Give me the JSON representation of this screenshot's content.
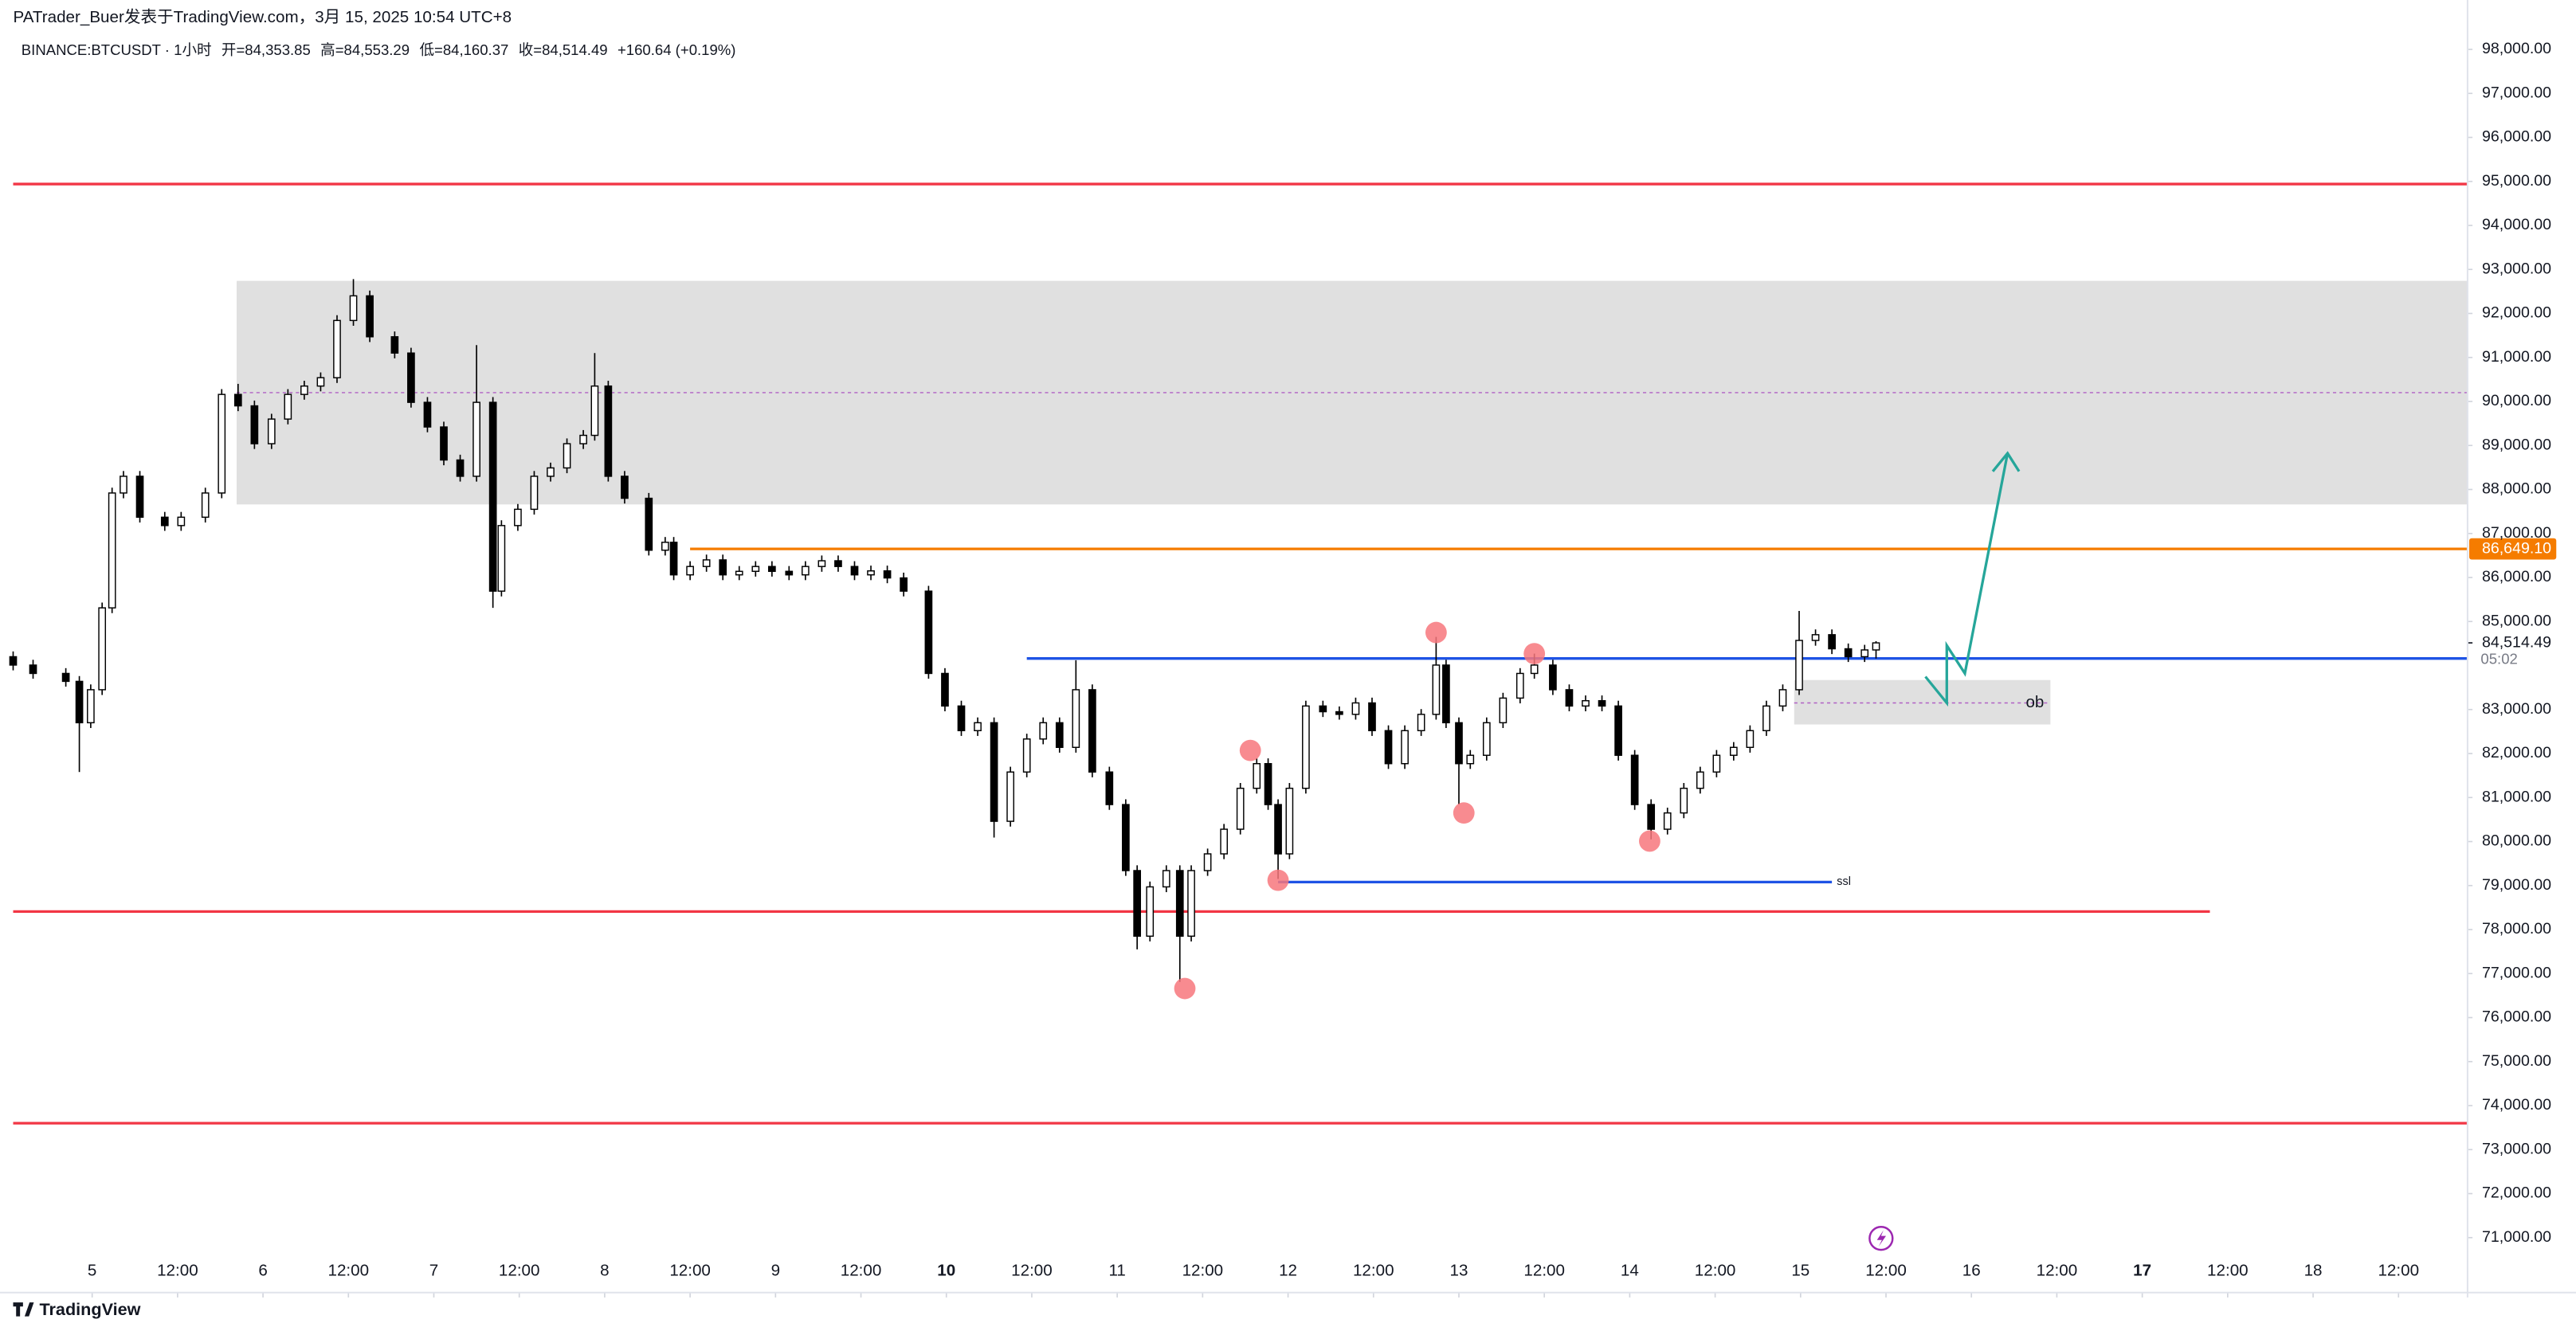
{
  "header": {
    "author": "PATrader_Buer发表于TradingView.com，3月 15, 2025 10:54 UTC+8",
    "brand": "TradingView"
  },
  "chart_data": {
    "type": "candlestick",
    "symbol": "BINANCE:BTCUSDT · 1小时",
    "quote": [
      "开=84,353.85",
      "高=84,553.29",
      "低=84,160.37",
      "收=84,514.49",
      "+160.64 (+0.19%)"
    ],
    "up_color": "#ffffff",
    "down_color": "#000000",
    "wick_color": "#000000",
    "x": [
      -11.1,
      -8.3,
      -3.7,
      -1.8,
      -0.2,
      1.4,
      2.8,
      4.4,
      6.7,
      10.2,
      12.5,
      15.9,
      18.2,
      20.5,
      22.8,
      25.2,
      27.5,
      29.8,
      32.1,
      34.4,
      36.7,
      39.0,
      42.5,
      44.8,
      47.1,
      49.4,
      51.7,
      54.0,
      56.3,
      57.5,
      59.8,
      62.1,
      64.4,
      66.7,
      69.0,
      70.6,
      72.5,
      74.8,
      78.2,
      80.5,
      81.7,
      84.0,
      86.3,
      88.6,
      90.9,
      93.2,
      95.5,
      97.9,
      100.2,
      102.5,
      104.8,
      107.1,
      109.4,
      111.7,
      114.0,
      117.5,
      119.8,
      122.1,
      124.4,
      126.7,
      129.0,
      131.3,
      133.6,
      135.9,
      138.2,
      140.5,
      142.9,
      145.2,
      146.8,
      148.6,
      150.9,
      152.8,
      154.4,
      156.7,
      159.0,
      161.3,
      163.6,
      165.2,
      166.6,
      168.2,
      170.5,
      172.9,
      175.2,
      177.5,
      179.8,
      182.1,
      184.4,
      186.7,
      188.8,
      190.2,
      192.0,
      193.6,
      195.9,
      198.2,
      200.6,
      202.6,
      205.2,
      207.5,
      209.8,
      212.1,
      214.4,
      216.7,
      219.0,
      221.3,
      223.6,
      225.9,
      228.2,
      230.6,
      232.9,
      235.2,
      237.5,
      239.8,
      242.1,
      244.4,
      246.7,
      249.0,
      250.6
    ],
    "open": [
      84200,
      84010,
      83820,
      83640,
      82700,
      83450,
      85310,
      87920,
      88300,
      87370,
      87180,
      87370,
      87920,
      90160,
      89900,
      89040,
      89600,
      90160,
      90350,
      90540,
      91840,
      92400,
      91470,
      91100,
      89980,
      89420,
      88670,
      88300,
      89980,
      85690,
      87180,
      87550,
      88300,
      88490,
      89040,
      89230,
      90350,
      88300,
      87800,
      86620,
      86800,
      86060,
      86250,
      86400,
      86060,
      86140,
      86250,
      86140,
      86060,
      86250,
      86380,
      86250,
      86060,
      86150,
      85990,
      85690,
      83820,
      83080,
      82520,
      82700,
      80460,
      81580,
      82330,
      82700,
      82140,
      83450,
      81580,
      80840,
      79340,
      77850,
      78970,
      79340,
      77850,
      79340,
      79720,
      80280,
      81210,
      81770,
      80840,
      79720,
      81210,
      83080,
      82950,
      82890,
      83150,
      82520,
      81770,
      82520,
      82890,
      84010,
      82700,
      81770,
      81960,
      82700,
      83260,
      83820,
      84010,
      83450,
      83080,
      83200,
      83080,
      81960,
      80840,
      80280,
      80650,
      81210,
      81580,
      81960,
      82140,
      82520,
      83080,
      83450,
      84570,
      84700,
      84380,
      84200,
      84353.85
    ],
    "high": [
      84320,
      84130,
      83940,
      83760,
      83570,
      85430,
      88040,
      88420,
      88420,
      87490,
      87490,
      88040,
      90280,
      90400,
      90020,
      89720,
      90280,
      90470,
      90660,
      91960,
      92780,
      92520,
      91590,
      91220,
      90100,
      89540,
      88790,
      91280,
      90100,
      87300,
      87670,
      88420,
      88610,
      89160,
      89350,
      91100,
      90470,
      88420,
      87920,
      86920,
      86920,
      86370,
      86520,
      86520,
      86260,
      86370,
      86370,
      86260,
      86370,
      86500,
      86500,
      86370,
      86270,
      86270,
      86110,
      85810,
      83940,
      83200,
      82820,
      82820,
      81700,
      82450,
      82820,
      82820,
      84120,
      83570,
      81700,
      80960,
      79460,
      79090,
      79460,
      79460,
      79460,
      79840,
      80400,
      81330,
      81890,
      81890,
      80960,
      81330,
      83200,
      83200,
      83070,
      83270,
      83270,
      82640,
      82640,
      83010,
      84650,
      84130,
      82820,
      82080,
      82820,
      83380,
      83940,
      84270,
      84130,
      83570,
      83320,
      83320,
      83200,
      82080,
      80960,
      80770,
      81330,
      81700,
      82080,
      82260,
      82640,
      83200,
      83570,
      85240,
      84820,
      84820,
      84500,
      84470,
      84553.29
    ],
    "low": [
      83890,
      83700,
      83520,
      81580,
      82580,
      83330,
      85190,
      87800,
      87250,
      87060,
      87060,
      87250,
      87800,
      89780,
      88920,
      88920,
      89480,
      90040,
      90230,
      90420,
      91720,
      91350,
      90980,
      89860,
      89300,
      88550,
      88180,
      88180,
      85310,
      85570,
      87060,
      87430,
      88180,
      88370,
      88920,
      89110,
      88180,
      87680,
      86500,
      86500,
      85940,
      85940,
      86130,
      85940,
      85940,
      86020,
      86020,
      85940,
      85940,
      86130,
      86130,
      85940,
      85940,
      85870,
      85570,
      83700,
      82960,
      82400,
      82400,
      80090,
      80340,
      81460,
      82210,
      82020,
      82020,
      81460,
      80720,
      79220,
      77550,
      77730,
      78850,
      76810,
      77730,
      79220,
      79600,
      80160,
      81090,
      80720,
      79150,
      79600,
      81090,
      82830,
      82770,
      82770,
      82400,
      81650,
      81650,
      82400,
      82770,
      82580,
      80840,
      81650,
      81840,
      82580,
      83140,
      83700,
      83330,
      82960,
      82960,
      82960,
      81840,
      80720,
      80050,
      80160,
      80530,
      81090,
      81460,
      81840,
      82020,
      82400,
      82960,
      83330,
      84450,
      84260,
      84080,
      84080,
      84160.37
    ],
    "close": [
      84010,
      83820,
      83640,
      82700,
      83450,
      85310,
      87920,
      88300,
      87370,
      87180,
      87370,
      87920,
      90160,
      89900,
      89040,
      89600,
      90160,
      90350,
      90540,
      91840,
      92400,
      91470,
      91100,
      89980,
      89420,
      88670,
      88300,
      89980,
      85690,
      87180,
      87550,
      88300,
      88490,
      89040,
      89230,
      90350,
      88300,
      87800,
      86620,
      86800,
      86060,
      86250,
      86400,
      86060,
      86140,
      86250,
      86140,
      86060,
      86250,
      86380,
      86250,
      86060,
      86150,
      85990,
      85690,
      83820,
      83080,
      82520,
      82700,
      80460,
      81580,
      82330,
      82700,
      82140,
      83450,
      81580,
      80840,
      79340,
      77850,
      78970,
      79340,
      77850,
      79340,
      79720,
      80280,
      81210,
      81770,
      80840,
      79720,
      81210,
      83080,
      82950,
      82890,
      83150,
      82520,
      81770,
      82520,
      82890,
      84010,
      82700,
      81770,
      81960,
      82700,
      83260,
      83820,
      84010,
      83450,
      83080,
      83200,
      83080,
      81960,
      80840,
      80280,
      80650,
      81210,
      81580,
      81960,
      82140,
      82520,
      83080,
      83450,
      84570,
      84700,
      84380,
      84200,
      84353.85,
      84514.49
    ],
    "xlim": [
      -11.1,
      333.7
    ],
    "ylim": [
      69640,
      98450
    ],
    "xticks": [
      {
        "value": 0,
        "label": "5"
      },
      {
        "value": 12,
        "label": "12:00"
      },
      {
        "value": 24,
        "label": "6"
      },
      {
        "value": 36,
        "label": "12:00"
      },
      {
        "value": 48,
        "label": "7"
      },
      {
        "value": 60,
        "label": "12:00"
      },
      {
        "value": 72,
        "label": "8"
      },
      {
        "value": 84,
        "label": "12:00"
      },
      {
        "value": 96,
        "label": "9"
      },
      {
        "value": 108,
        "label": "12:00"
      },
      {
        "value": 120,
        "label": "10",
        "bold": true
      },
      {
        "value": 132,
        "label": "12:00"
      },
      {
        "value": 144,
        "label": "11"
      },
      {
        "value": 156,
        "label": "12:00"
      },
      {
        "value": 168,
        "label": "12"
      },
      {
        "value": 180,
        "label": "12:00"
      },
      {
        "value": 192,
        "label": "13"
      },
      {
        "value": 204,
        "label": "12:00"
      },
      {
        "value": 216,
        "label": "14"
      },
      {
        "value": 228,
        "label": "12:00"
      },
      {
        "value": 240,
        "label": "15"
      },
      {
        "value": 252,
        "label": "12:00"
      },
      {
        "value": 264,
        "label": "16"
      },
      {
        "value": 276,
        "label": "12:00"
      },
      {
        "value": 288,
        "label": "17",
        "bold": true
      },
      {
        "value": 300,
        "label": "12:00"
      },
      {
        "value": 312,
        "label": "18"
      },
      {
        "value": 324,
        "label": "12:00"
      }
    ],
    "yticks": [
      {
        "value": 98000,
        "label": "98,000.00"
      },
      {
        "value": 97000,
        "label": "97,000.00"
      },
      {
        "value": 96000,
        "label": "96,000.00"
      },
      {
        "value": 95000,
        "label": "95,000.00"
      },
      {
        "value": 94000,
        "label": "94,000.00"
      },
      {
        "value": 93000,
        "label": "93,000.00"
      },
      {
        "value": 92000,
        "label": "92,000.00"
      },
      {
        "value": 91000,
        "label": "91,000.00"
      },
      {
        "value": 90000,
        "label": "90,000.00"
      },
      {
        "value": 89000,
        "label": "89,000.00"
      },
      {
        "value": 88000,
        "label": "88,000.00"
      },
      {
        "value": 87000,
        "label": "87,000.00"
      },
      {
        "value": 86000,
        "label": "86,000.00"
      },
      {
        "value": 85000,
        "label": "85,000.00"
      },
      {
        "value": 83000,
        "label": "83,000.00"
      },
      {
        "value": 82000,
        "label": "82,000.00"
      },
      {
        "value": 81000,
        "label": "81,000.00"
      },
      {
        "value": 80000,
        "label": "80,000.00"
      },
      {
        "value": 79000,
        "label": "79,000.00"
      },
      {
        "value": 78000,
        "label": "78,000.00"
      },
      {
        "value": 77000,
        "label": "77,000.00"
      },
      {
        "value": 76000,
        "label": "76,000.00"
      },
      {
        "value": 75000,
        "label": "75,000.00"
      },
      {
        "value": 74000,
        "label": "74,000.00"
      },
      {
        "value": 73000,
        "label": "73,000.00"
      },
      {
        "value": 72000,
        "label": "72,000.00"
      },
      {
        "value": 71000,
        "label": "71,000.00"
      }
    ],
    "zones": [
      {
        "x": [
          20.3,
          333.7
        ],
        "y": [
          87660,
          92740
        ],
        "mid": 90200,
        "color": "#e0e0e0"
      },
      {
        "x": [
          239.1,
          275.1
        ],
        "y": [
          82660,
          83670
        ],
        "mid": 83150,
        "color": "#e0e0e0",
        "text": "ob"
      }
    ],
    "levels": [
      {
        "value": 94940,
        "color": "#f23645",
        "x": [
          -11.1,
          333.7
        ]
      },
      {
        "value": 78410,
        "color": "#f23645",
        "x": [
          -11.1,
          297.5
        ]
      },
      {
        "value": 73600,
        "color": "#f23645",
        "x": [
          -11.1,
          333.7
        ]
      },
      {
        "value": 86649.1,
        "label": "86,649.10",
        "color": "#f57c00",
        "x": [
          84,
          333.7
        ]
      },
      {
        "value": 84160,
        "color": "#1e53e5",
        "x": [
          131.3,
          333.7
        ]
      },
      {
        "value": 79080,
        "color": "#1e53e5",
        "x": [
          166.6,
          244.4
        ],
        "text": "ssl"
      }
    ],
    "markers": {
      "color": "#f7777d",
      "x": [
        153.5,
        162.7,
        166.6,
        188.8,
        192.7,
        202.6,
        218.8
      ],
      "y": [
        76660,
        82070,
        79120,
        84750,
        80650,
        84270,
        80010
      ]
    },
    "price_line": {
      "value": 84514.49,
      "label": "84,514.49",
      "countdown": "05:02"
    }
  }
}
